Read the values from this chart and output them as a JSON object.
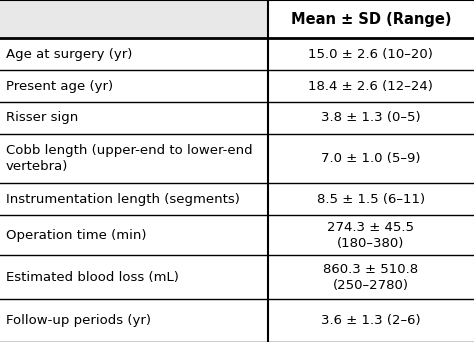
{
  "header": [
    "",
    "Mean ± SD (Range)"
  ],
  "rows": [
    [
      "Age at surgery (yr)",
      "15.0 ± 2.6 (10–20)"
    ],
    [
      "Present age (yr)",
      "18.4 ± 2.6 (12–24)"
    ],
    [
      "Risser sign",
      "3.8 ± 1.3 (0–5)"
    ],
    [
      "Cobb length (upper-end to lower-end\nvertebra)",
      "7.0 ± 1.0 (5–9)"
    ],
    [
      "Instrumentation length (segments)",
      "8.5 ± 1.5 (6–11)"
    ],
    [
      "Operation time (min)",
      "274.3 ± 45.5\n(180–380)"
    ],
    [
      "Estimated blood loss (mL)",
      "860.3 ± 510.8\n(250–2780)"
    ],
    [
      "Follow-up periods (yr)",
      "3.6 ± 1.3 (2–6)"
    ]
  ],
  "col_split": 0.565,
  "header_bg": "#e8e8e8",
  "right_header_bg": "#ffffff",
  "line_color": "#000000",
  "text_color": "#000000",
  "header_fontsize": 10.5,
  "body_fontsize": 9.5
}
